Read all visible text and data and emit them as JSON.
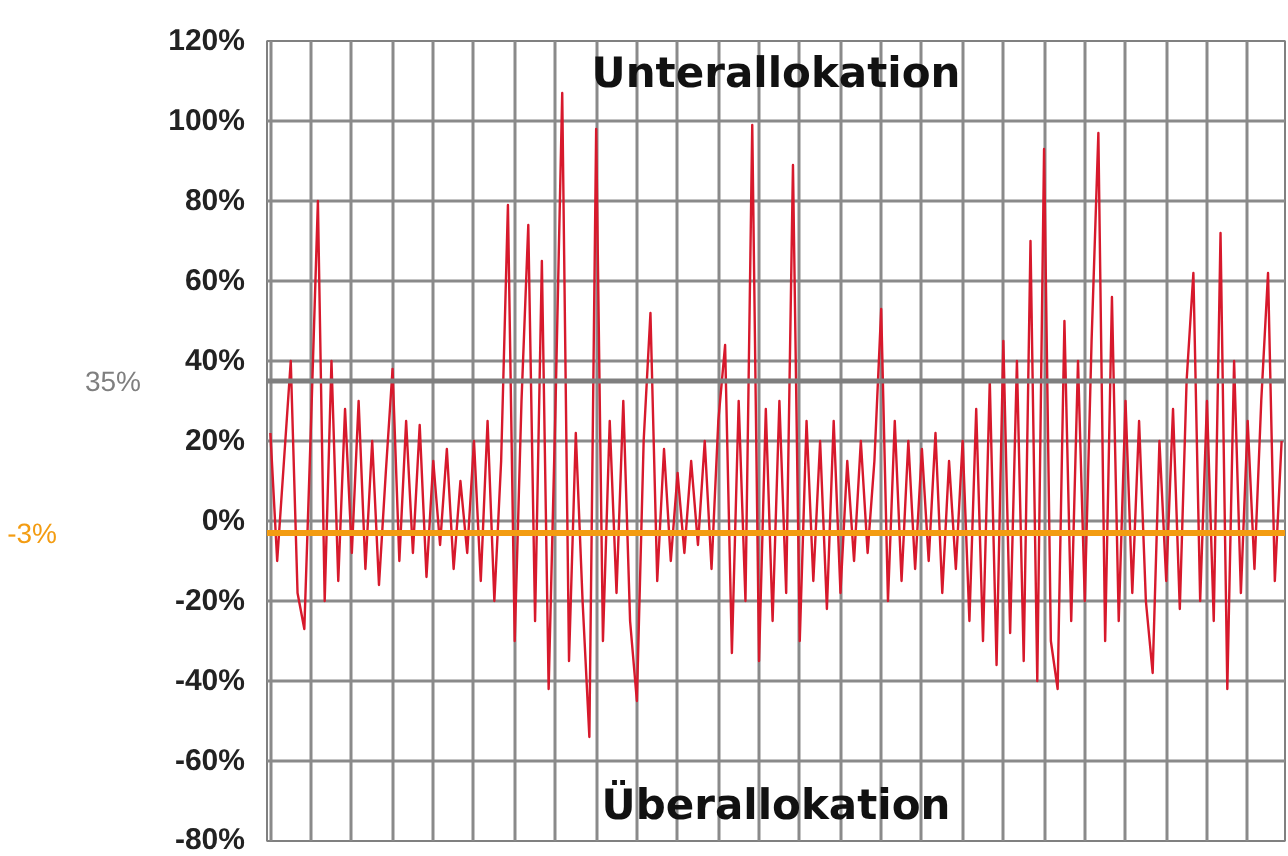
{
  "chart_data": {
    "type": "line",
    "categories": [
      null,
      null,
      null,
      null,
      null,
      null,
      null,
      null,
      null,
      null,
      null,
      null,
      null,
      null,
      null,
      null,
      null,
      null,
      null,
      null,
      null,
      null,
      null,
      null,
      null,
      null,
      null,
      null,
      null,
      null,
      null,
      null,
      null,
      null,
      null,
      null,
      null,
      null,
      null,
      null,
      null,
      null,
      null,
      null,
      null,
      null,
      null,
      null,
      null,
      null,
      null,
      null,
      null,
      null,
      null,
      null,
      null,
      null,
      null,
      null,
      null,
      null,
      null,
      null,
      null,
      null,
      null,
      null,
      null,
      null,
      null,
      null,
      null,
      null,
      null,
      null,
      null,
      null,
      null,
      null,
      null,
      null,
      null,
      null,
      null,
      null,
      null,
      null,
      null,
      null,
      null,
      null,
      null,
      null,
      null,
      null,
      null,
      null,
      null,
      null,
      null,
      null,
      null,
      null,
      null,
      null,
      null,
      null,
      null,
      null,
      null,
      null,
      null,
      null,
      null,
      null,
      null,
      null,
      null,
      null,
      null,
      null,
      null,
      null,
      null,
      null,
      null,
      null,
      null,
      null,
      null,
      null,
      null,
      null,
      null,
      null,
      null,
      null,
      null,
      null,
      null,
      null,
      null,
      null,
      null,
      null,
      null,
      null,
      null,
      null
    ],
    "series": [
      {
        "color": "#d7192c",
        "values": [
          22,
          -10,
          15,
          40,
          -18,
          -27,
          25,
          80,
          -20,
          40,
          -15,
          28,
          -8,
          30,
          -12,
          20,
          -16,
          12,
          38,
          -10,
          25,
          -8,
          24,
          -14,
          15,
          -6,
          18,
          -12,
          10,
          -8,
          20,
          -15,
          25,
          -20,
          15,
          79,
          -30,
          30,
          74,
          -25,
          65,
          -42,
          28,
          107,
          -35,
          22,
          -20,
          -54,
          98,
          -30,
          25,
          -18,
          30,
          -25,
          -45,
          20,
          52,
          -15,
          18,
          -10,
          12,
          -8,
          15,
          -6,
          20,
          -12,
          25,
          44,
          -33,
          30,
          -20,
          99,
          -35,
          28,
          -25,
          30,
          -18,
          89,
          -30,
          25,
          -15,
          20,
          -22,
          25,
          -18,
          15,
          -10,
          20,
          -8,
          15,
          53,
          -20,
          25,
          -15,
          20,
          -12,
          18,
          -10,
          22,
          -18,
          15,
          -12,
          20,
          -25,
          28,
          -30,
          35,
          -36,
          45,
          -28,
          40,
          -35,
          70,
          -40,
          93,
          -30,
          -42,
          50,
          -25,
          40,
          -20,
          45,
          97,
          -30,
          56,
          -25,
          30,
          -18,
          25,
          -20,
          -38,
          20,
          -15,
          28,
          -22,
          35,
          62,
          -20,
          30,
          -25,
          72,
          -42,
          40,
          -18,
          25,
          -12,
          30,
          62,
          -15,
          20
        ]
      }
    ],
    "ylim": [
      -80,
      120
    ],
    "yticks": [
      {
        "value": -80,
        "label": "-80%"
      },
      {
        "value": -60,
        "label": "-60%"
      },
      {
        "value": -40,
        "label": "-40%"
      },
      {
        "value": -20,
        "label": "-20%"
      },
      {
        "value": 0,
        "label": "0%"
      },
      {
        "value": 20,
        "label": "20%"
      },
      {
        "value": 40,
        "label": "40%"
      },
      {
        "value": 60,
        "label": "60%"
      },
      {
        "value": 80,
        "label": "80%"
      },
      {
        "value": 100,
        "label": "100%"
      },
      {
        "value": 120,
        "label": "120%"
      }
    ],
    "ref_lines": [
      {
        "axis": "y",
        "value": 35,
        "label": "35%",
        "color": "#7f7f7f"
      },
      {
        "axis": "y",
        "value": -3,
        "label": "-3%",
        "color": "#f39c12"
      }
    ],
    "annotations": [
      "Unterallokation",
      "Überallokation"
    ],
    "grid": true,
    "tick_labels": "y",
    "line_style": "solid"
  }
}
